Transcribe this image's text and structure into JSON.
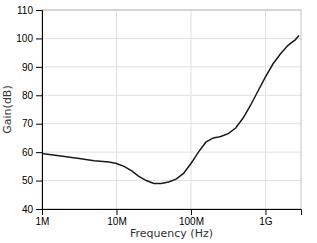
{
  "chart_data": {
    "type": "line",
    "xlabel": "Frequency (Hz)",
    "ylabel": "Gain(dB)",
    "log": "x",
    "x": [
      1000000,
      1412537.5446227544,
      1995262.3149688796,
      3162277.6601683795,
      5011872.336272722,
      7943282.347242816,
      10000000,
      12589254.117941674,
      15848931.924611136,
      19952623.149688795,
      25118864.3150958,
      31622776.601683795,
      39810717.05534972,
      50118723.36272722,
      63095734.44801933,
      79432823.47242816,
      100000000,
      112201845.43019633,
      125892541.17941673,
      158489319.24611136,
      199526231.49688795,
      223872113.85683393,
      251188643.150958,
      316227766.01683795,
      398107170.5534972,
      501187233.6272722,
      630957344.4801933,
      794328234.7242815,
      1000000000,
      1258925411.7941673,
      1584893192.4611137,
      1995262314.9688795,
      2238721138.5683393,
      2511886431.50958,
      2818382931.264454
    ],
    "values": [
      59.5,
      59.0,
      58.5,
      57.8,
      57.0,
      56.5,
      56.0,
      55.0,
      53.5,
      51.5,
      50.0,
      49.0,
      49.0,
      49.5,
      50.5,
      52.5,
      56.0,
      58.0,
      60.0,
      63.5,
      65.0,
      65.2,
      65.5,
      66.5,
      68.5,
      72.0,
      76.5,
      81.5,
      86.5,
      91.0,
      94.5,
      97.5,
      98.5,
      99.5,
      101.0
    ],
    "color": "#1a1a1a",
    "xlim": [
      1000000,
      3000000000
    ],
    "ylim": [
      40,
      110
    ],
    "xticks": [
      {
        "value": 1000000,
        "label": "1M"
      },
      {
        "value": 10000000,
        "label": "10M"
      },
      {
        "value": 100000000,
        "label": "100M"
      },
      {
        "value": 1000000000,
        "label": "1G"
      }
    ],
    "yticks": [
      40,
      50,
      60,
      70,
      80,
      90,
      100,
      110
    ],
    "grid": true
  }
}
